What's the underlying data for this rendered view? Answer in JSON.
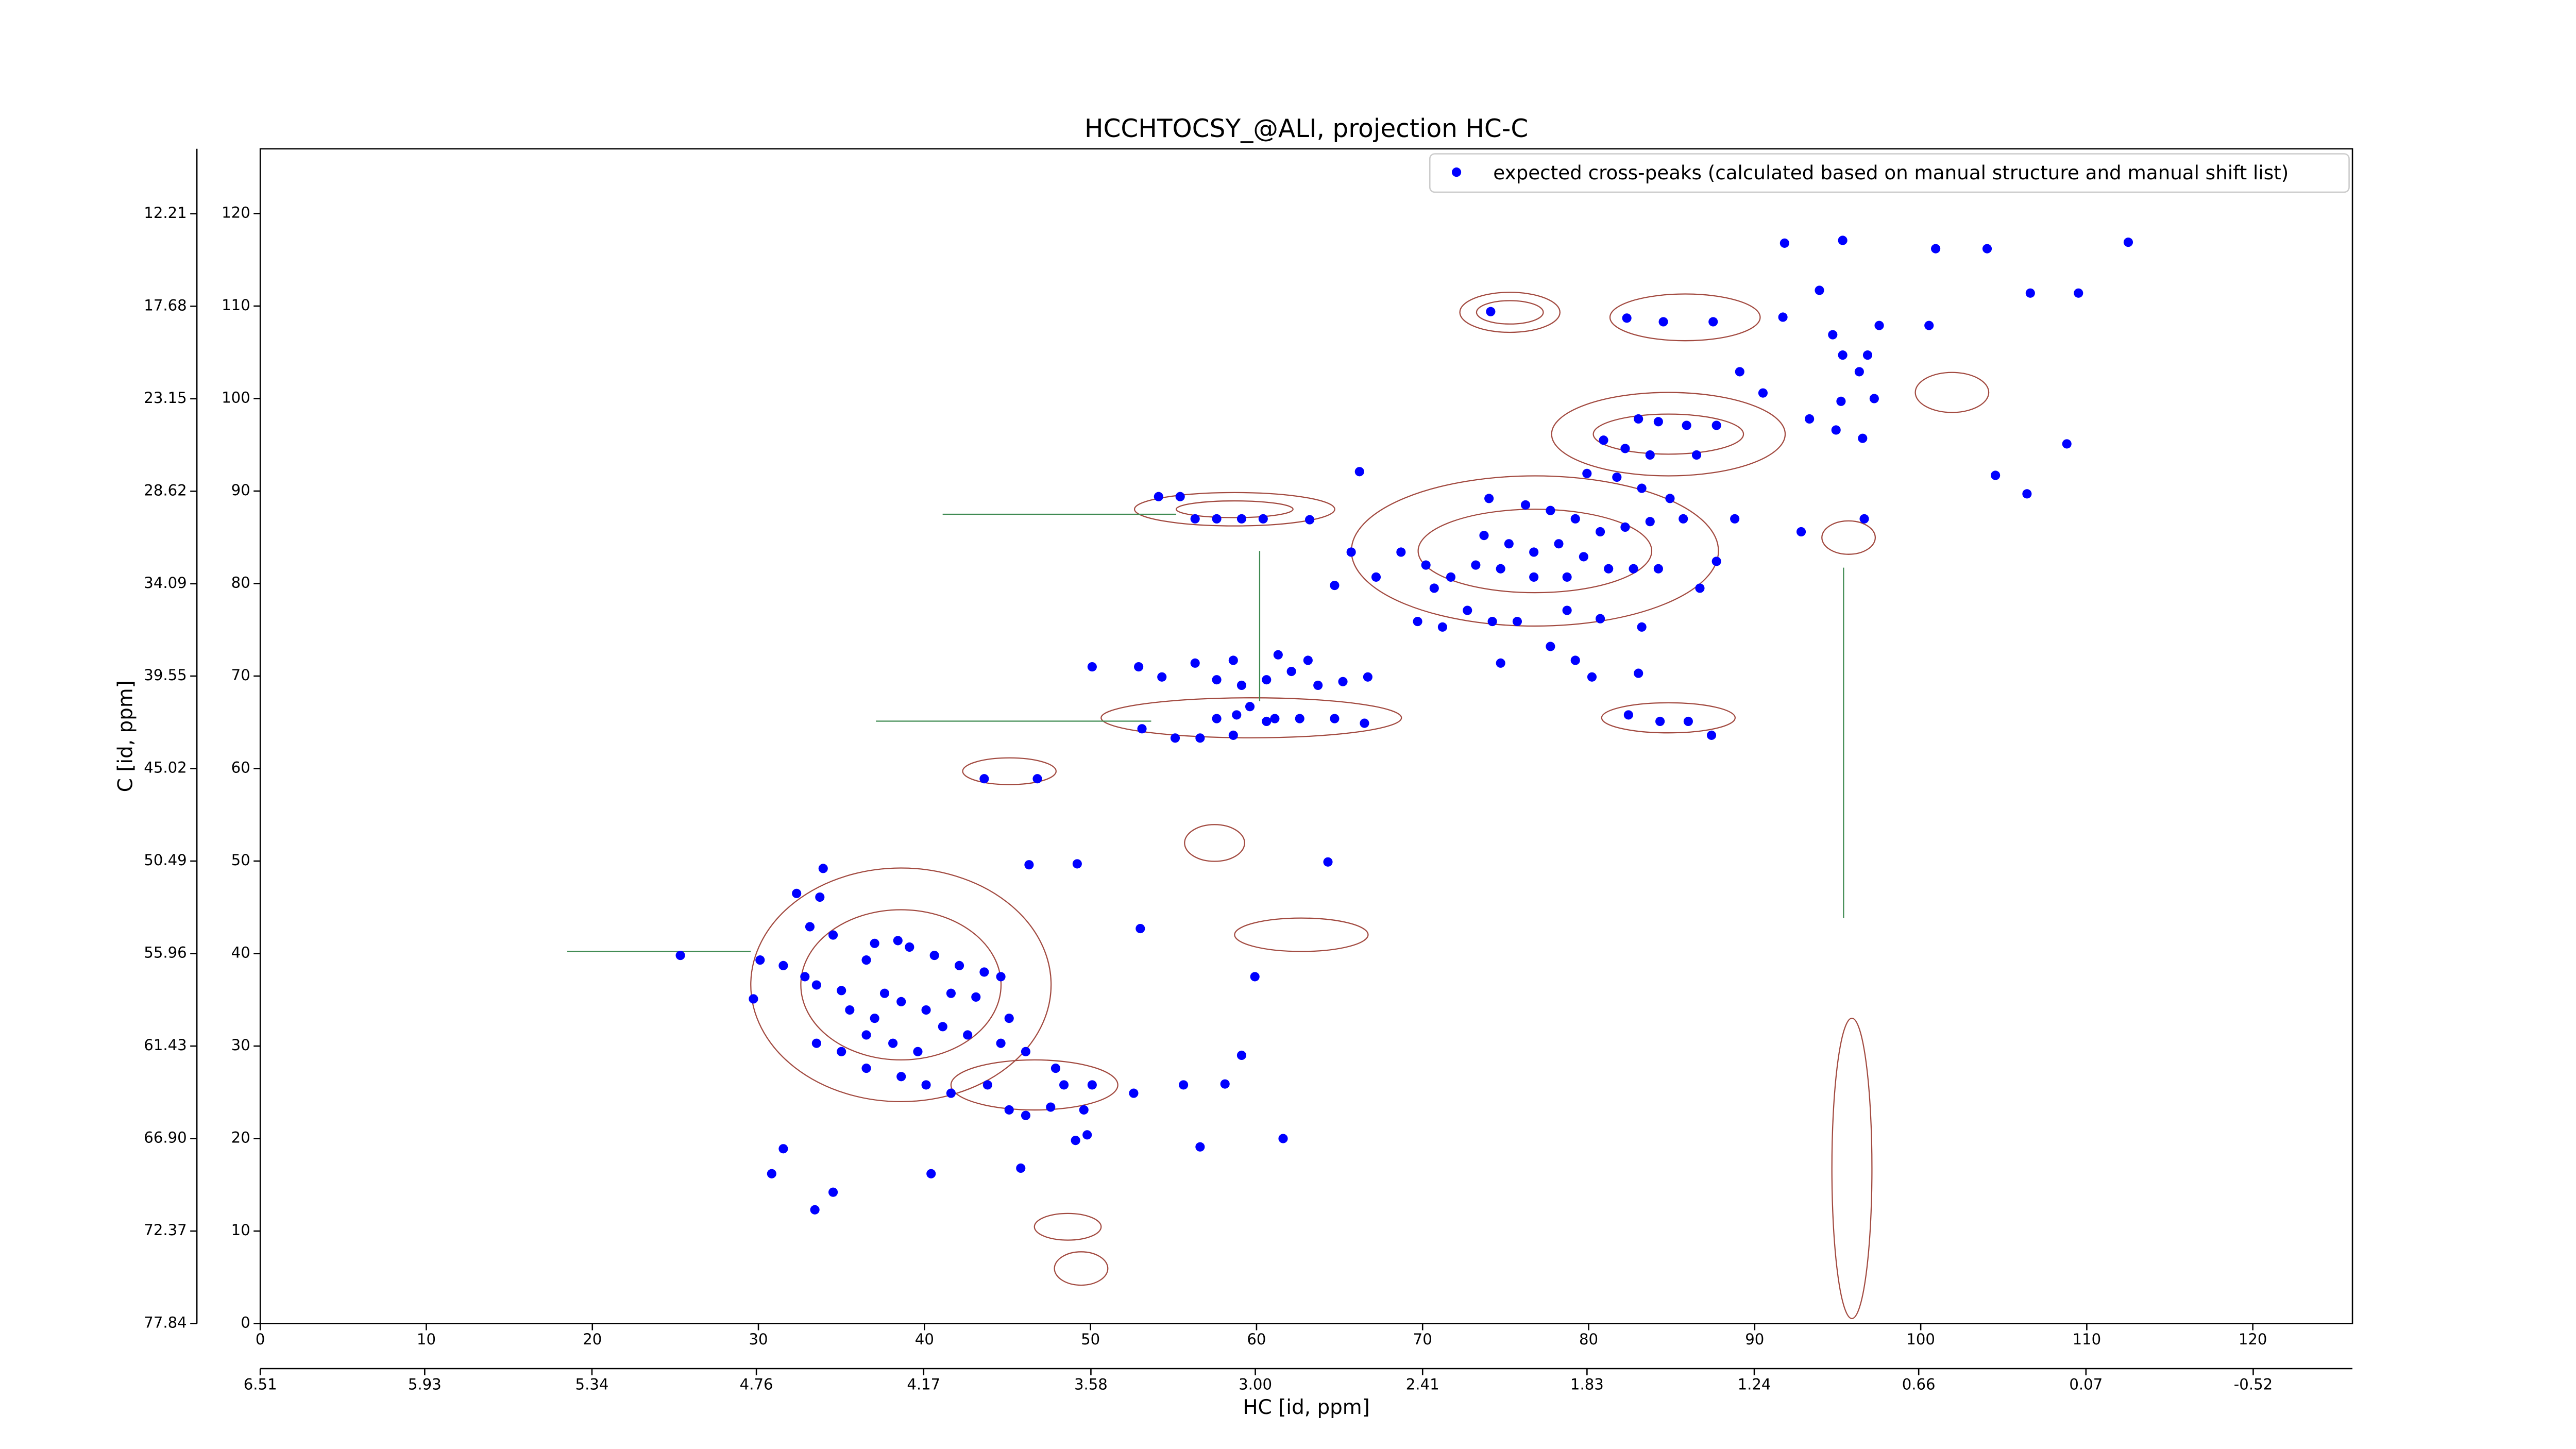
{
  "chart_data": {
    "type": "scatter",
    "title": "HCCHTOCSY_@ALI, projection HC-C",
    "x_label": "HC [id, ppm]",
    "y_label": "C [id, ppm]",
    "xlim": [
      0,
      126
    ],
    "xticks": [
      0,
      10,
      20,
      30,
      40,
      50,
      60,
      70,
      80,
      90,
      100,
      110,
      120
    ],
    "x2lim": [
      6.51,
      -0.87
    ],
    "x2ticks": [
      6.51,
      5.93,
      5.34,
      4.76,
      4.17,
      3.58,
      {
        "value": 3,
        "label": "3.00"
      },
      2.41,
      1.83,
      1.24,
      0.66,
      0.07,
      -0.52
    ],
    "ylim": [
      0,
      127
    ],
    "yticks": [
      0,
      10,
      20,
      30,
      40,
      50,
      60,
      70,
      80,
      90,
      100,
      110,
      120
    ],
    "y2lim": [
      77.84,
      8.37
    ],
    "y2ticks": [
      77.84,
      72.37,
      {
        "value": 66.9,
        "label": "66.90"
      },
      61.43,
      55.96,
      50.49,
      45.02,
      39.55,
      34.09,
      28.62,
      23.15,
      17.68,
      12.21
    ],
    "legend": "upper right",
    "x": [
      91.8,
      95.3,
      100.9,
      104.0,
      112.5,
      106.6,
      109.5,
      93.9,
      91.7,
      74.1,
      82.3,
      84.5,
      87.5,
      94.7,
      97.5,
      100.5,
      95.3,
      96.8,
      96.3,
      89.1,
      90.5,
      97.2,
      95.2,
      93.3,
      94.9,
      96.5,
      108.8,
      104.5,
      106.4,
      83.0,
      84.2,
      85.9,
      87.7,
      80.9,
      82.2,
      83.7,
      86.5,
      79.9,
      81.7,
      83.2,
      84.9,
      88.8,
      92.8,
      96.6,
      74.0,
      76.2,
      77.7,
      79.2,
      80.7,
      82.2,
      83.7,
      85.7,
      73.7,
      75.2,
      76.7,
      78.2,
      79.7,
      81.2,
      82.7,
      84.2,
      87.7,
      68.7,
      70.2,
      71.7,
      73.2,
      74.7,
      76.7,
      78.7,
      67.2,
      65.7,
      64.7,
      70.7,
      86.7,
      72.7,
      74.2,
      69.7,
      71.2,
      75.7,
      78.7,
      80.7,
      83.2,
      74.7,
      77.7,
      79.2,
      80.2,
      83.0,
      82.4,
      84.3,
      86.0,
      87.4,
      54.1,
      55.4,
      56.3,
      57.6,
      59.1,
      60.4,
      63.2,
      66.2,
      50.1,
      52.9,
      54.3,
      56.3,
      57.6,
      59.1,
      60.6,
      62.1,
      63.7,
      65.2,
      66.7,
      61.3,
      63.1,
      58.6,
      59.6,
      61.1,
      57.6,
      58.8,
      53.1,
      55.1,
      56.6,
      58.6,
      60.6,
      62.6,
      64.7,
      66.5,
      43.6,
      46.8,
      46.3,
      49.2,
      64.3,
      59.9,
      53.0,
      25.3,
      29.7,
      30.1,
      33.9,
      33.7,
      32.3,
      33.1,
      34.5,
      31.5,
      32.8,
      33.5,
      35.0,
      36.5,
      37.0,
      38.4,
      39.1,
      40.6,
      42.1,
      43.6,
      44.6,
      35.5,
      37.0,
      38.6,
      40.1,
      41.6,
      43.1,
      45.1,
      33.5,
      35.0,
      36.5,
      38.1,
      39.6,
      41.1,
      42.6,
      44.6,
      46.1,
      36.5,
      38.6,
      40.1,
      41.6,
      43.8,
      45.1,
      46.1,
      47.6,
      48.4,
      50.1,
      52.6,
      55.6,
      58.1,
      59.1,
      47.9,
      49.1,
      49.8,
      31.5,
      30.8,
      34.5,
      33.4,
      40.4,
      45.8,
      56.6,
      61.6,
      49.6,
      37.6
    ],
    "series": [
      {
        "name": "expected cross-peaks (calculated based on manual structure and manual shift list)",
        "color": "#0000ff",
        "values": [
          116.8,
          117.1,
          116.2,
          116.2,
          116.9,
          111.4,
          111.4,
          111.7,
          108.8,
          109.4,
          108.7,
          108.3,
          108.3,
          106.9,
          107.9,
          107.9,
          104.7,
          104.7,
          102.9,
          102.9,
          100.6,
          100.0,
          99.7,
          97.8,
          96.6,
          95.7,
          95.1,
          91.7,
          89.7,
          97.8,
          97.5,
          97.1,
          97.1,
          95.5,
          94.6,
          93.9,
          93.9,
          91.9,
          91.5,
          90.3,
          89.2,
          87.0,
          85.6,
          87.0,
          89.2,
          88.5,
          87.9,
          87.0,
          85.6,
          86.1,
          86.7,
          87.0,
          85.2,
          84.3,
          83.4,
          84.3,
          82.9,
          81.6,
          81.6,
          81.6,
          82.4,
          83.4,
          82.0,
          80.7,
          82.0,
          81.6,
          80.7,
          80.7,
          80.7,
          83.4,
          79.8,
          79.5,
          79.5,
          77.1,
          75.9,
          75.9,
          75.3,
          75.9,
          77.1,
          76.2,
          75.3,
          71.4,
          73.2,
          71.7,
          69.9,
          70.3,
          65.8,
          65.1,
          65.1,
          63.6,
          89.4,
          89.4,
          87.0,
          87.0,
          87.0,
          87.0,
          86.9,
          92.1,
          71.0,
          71.0,
          69.9,
          71.4,
          69.6,
          69.0,
          69.6,
          70.5,
          69.0,
          69.4,
          69.9,
          72.3,
          71.7,
          71.7,
          66.7,
          65.4,
          65.4,
          65.8,
          64.3,
          63.3,
          63.3,
          63.6,
          65.1,
          65.4,
          65.4,
          64.9,
          58.9,
          58.9,
          49.6,
          49.7,
          49.9,
          37.5,
          42.7,
          39.8,
          35.1,
          39.3,
          49.2,
          46.1,
          46.5,
          42.9,
          42.0,
          38.7,
          37.5,
          36.6,
          36.0,
          39.3,
          41.1,
          41.4,
          40.7,
          39.8,
          38.7,
          38.0,
          37.5,
          33.9,
          33.0,
          34.8,
          33.9,
          35.7,
          35.3,
          33.0,
          30.3,
          29.4,
          31.2,
          30.3,
          29.4,
          32.1,
          31.2,
          30.3,
          29.4,
          27.6,
          26.7,
          25.8,
          24.9,
          25.8,
          23.1,
          22.5,
          23.4,
          25.8,
          25.8,
          24.9,
          25.8,
          25.9,
          29.0,
          27.6,
          19.8,
          20.4,
          18.9,
          16.2,
          14.2,
          12.3,
          16.2,
          16.8,
          19.1,
          20.0,
          23.1,
          35.7
        ]
      }
    ]
  }
}
